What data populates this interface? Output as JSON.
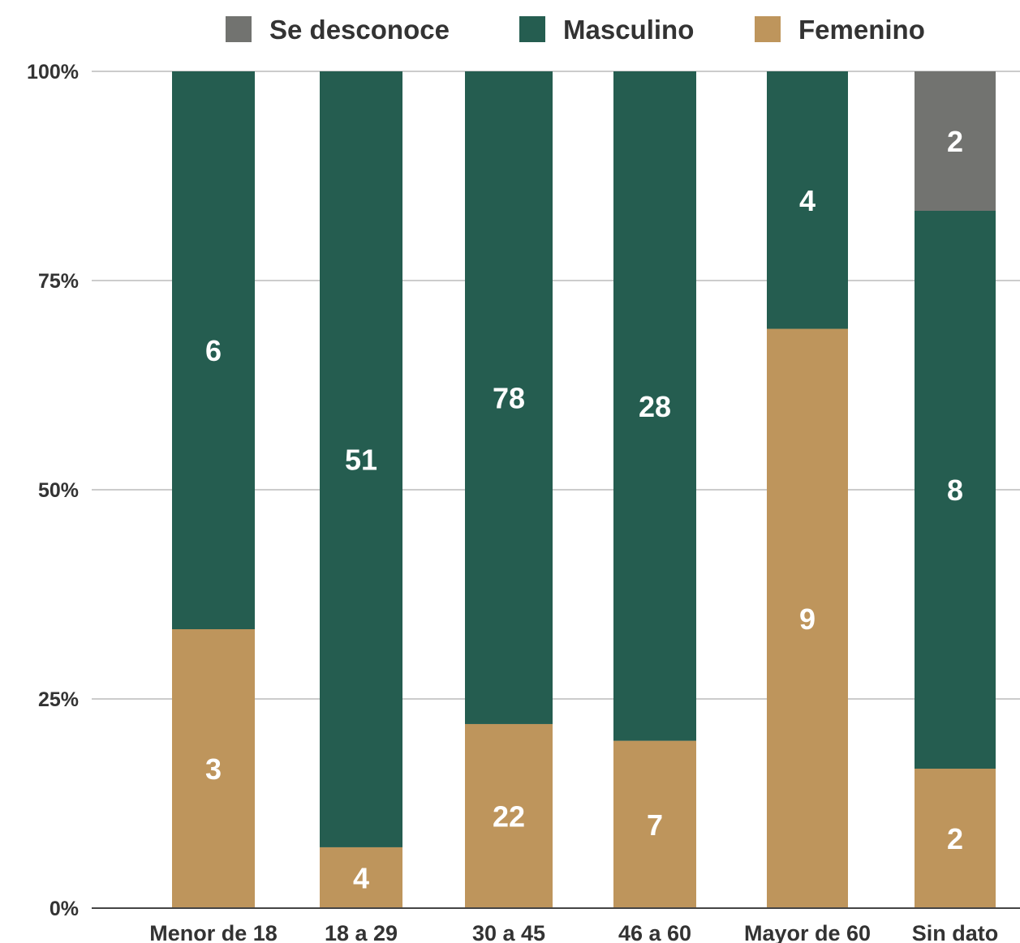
{
  "chart_data": {
    "type": "bar",
    "stacked": true,
    "normalized": true,
    "categories": [
      "Menor de 18",
      "18 a 29",
      "30 a 45",
      "46 a 60",
      "Mayor de 60",
      "Sin dato"
    ],
    "series": [
      {
        "name": "Femenino",
        "color": "#BE955C",
        "values": [
          3,
          4,
          22,
          7,
          9,
          2
        ]
      },
      {
        "name": "Masculino",
        "color": "#255D50",
        "values": [
          6,
          51,
          78,
          28,
          4,
          8
        ]
      },
      {
        "name": "Se desconoce",
        "color": "#727370",
        "values": [
          0,
          0,
          0,
          0,
          0,
          2
        ]
      }
    ],
    "legend_order": [
      "Se desconoce",
      "Masculino",
      "Femenino"
    ],
    "legend_position": "top",
    "yticks": [
      "0%",
      "25%",
      "50%",
      "75%",
      "100%"
    ],
    "ylim": [
      0,
      100
    ],
    "grid": true
  }
}
